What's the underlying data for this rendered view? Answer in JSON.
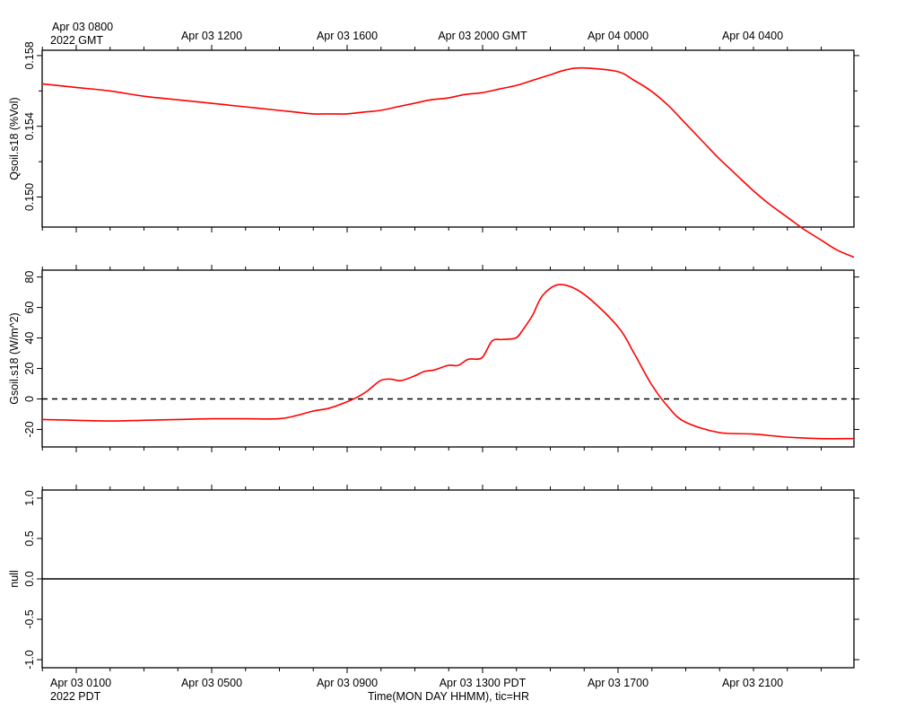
{
  "top_axis": {
    "first_label": "Apr 03 0800",
    "first_sub": "2022 GMT",
    "labels": [
      "Apr 03 1200",
      "Apr 03 1600",
      "Apr 03 2000 GMT",
      "Apr 04 0000",
      "Apr 04 0400"
    ]
  },
  "bottom_axis": {
    "first_label": "Apr 03 0100",
    "first_sub": "2022 PDT",
    "labels": [
      "Apr 03 0500",
      "Apr 03 0900",
      "Apr 03 1300 PDT",
      "Apr 03 1700",
      "Apr 03 2100"
    ],
    "title": "Time(MON DAY HHMM), tic=HR"
  },
  "colors": {
    "series": "#ff0000",
    "axis": "#000000"
  },
  "chart_data": [
    {
      "type": "line",
      "ylabel": "Qsoil.s18 (%Vol)",
      "xlim": [
        0.0,
        24.0
      ],
      "ylim": [
        0.1483,
        0.1583
      ],
      "yticks": [
        0.15,
        0.154,
        0.158
      ],
      "yticklabels": [
        "0.150",
        "0.154",
        "0.158"
      ],
      "x": [
        0,
        1,
        2,
        3,
        4,
        5,
        6,
        7,
        7.5,
        8,
        8.5,
        9,
        9.5,
        10,
        10.5,
        11,
        11.5,
        12,
        12.5,
        13,
        13.5,
        14,
        14.5,
        15,
        15.5,
        16,
        17,
        17.5,
        18,
        18.5,
        19,
        19.5,
        20,
        20.5,
        21,
        21.5,
        22,
        22.5,
        23,
        23.5,
        24
      ],
      "series": [
        {
          "values": [
            0.1564,
            0.1562,
            0.156,
            0.1557,
            0.1555,
            0.1553,
            0.1551,
            0.1549,
            0.1548,
            0.1547,
            0.1547,
            0.1547,
            0.1548,
            0.1549,
            0.1551,
            0.1553,
            0.1555,
            0.1556,
            0.1558,
            0.1559,
            0.1561,
            0.1563,
            0.1566,
            0.1569,
            0.1572,
            0.1573,
            0.1571,
            0.1566,
            0.156,
            0.1552,
            0.1542,
            0.1532,
            0.1522,
            0.1513,
            0.1504,
            0.1496,
            0.1489,
            0.1482,
            0.1476,
            0.147,
            0.1466
          ]
        }
      ]
    },
    {
      "type": "line",
      "ylabel": "Gsoil.s18 (W/m^2)",
      "xlim": [
        0.0,
        24.0
      ],
      "ylim": [
        -31.5,
        84.5
      ],
      "yticks": [
        -20,
        0,
        20,
        40,
        60,
        80
      ],
      "yticklabels": [
        "-20",
        "0",
        "20",
        "40",
        "60",
        "80"
      ],
      "reference_line": 0,
      "x": [
        0,
        1,
        2,
        3,
        4,
        5,
        6,
        7,
        7.5,
        8,
        8.5,
        9,
        9.3,
        9.6,
        10,
        10.3,
        10.6,
        11,
        11.3,
        11.6,
        12,
        12.3,
        12.6,
        13,
        13.3,
        13.6,
        14,
        14.2,
        14.5,
        14.8,
        15.3,
        16,
        17,
        17.5,
        18,
        18.5,
        19,
        20,
        21,
        22,
        23,
        24
      ],
      "series": [
        {
          "values": [
            -13.5,
            -14,
            -14.5,
            -14,
            -13.5,
            -13,
            -13,
            -13,
            -11,
            -8,
            -6,
            -2,
            1,
            5,
            12,
            13,
            12,
            15,
            18,
            19,
            22,
            22,
            26,
            27,
            38,
            39,
            40,
            45,
            55,
            68,
            75,
            69,
            48,
            30,
            10,
            -5,
            -15,
            -22,
            -23,
            -25,
            -26,
            -26
          ]
        }
      ]
    },
    {
      "type": "line",
      "ylabel": "null",
      "xlim": [
        0.0,
        24.0
      ],
      "ylim": [
        -1.1,
        1.1
      ],
      "yticks": [
        -1.0,
        -0.5,
        0.0,
        0.5,
        1.0
      ],
      "yticklabels": [
        "-1.0",
        "-0.5",
        "0.0",
        "0.5",
        "1.0"
      ],
      "reference_line": 0,
      "series": []
    }
  ]
}
